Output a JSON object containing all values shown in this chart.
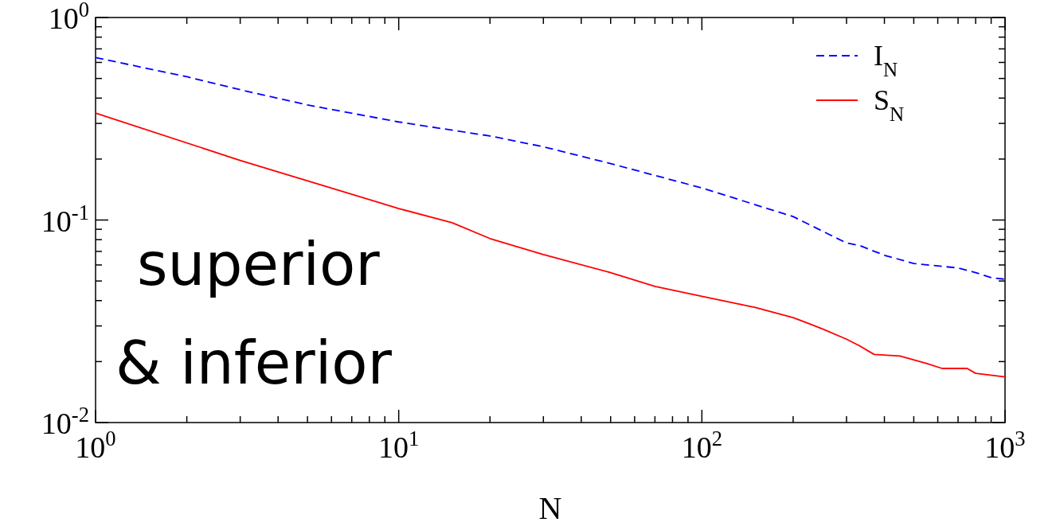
{
  "chart_data": {
    "type": "line",
    "xlabel": "N",
    "log": "xy",
    "xlim": [
      1,
      1000
    ],
    "ylim": [
      0.01,
      1
    ],
    "xticks": [
      {
        "value": 1,
        "label": "10$^{0}$"
      },
      {
        "value": 2,
        "label": null
      },
      {
        "value": 3,
        "label": null
      },
      {
        "value": 4,
        "label": null
      },
      {
        "value": 5,
        "label": null
      },
      {
        "value": 6,
        "label": null
      },
      {
        "value": 7,
        "label": null
      },
      {
        "value": 8,
        "label": null
      },
      {
        "value": 9,
        "label": null
      },
      {
        "value": 10,
        "label": "10$^{1}$"
      },
      {
        "value": 20,
        "label": null
      },
      {
        "value": 30,
        "label": null
      },
      {
        "value": 40,
        "label": null
      },
      {
        "value": 50,
        "label": null
      },
      {
        "value": 60,
        "label": null
      },
      {
        "value": 70,
        "label": null
      },
      {
        "value": 80,
        "label": null
      },
      {
        "value": 90,
        "label": null
      },
      {
        "value": 100,
        "label": "10$^{2}$"
      },
      {
        "value": 200,
        "label": null
      },
      {
        "value": 300,
        "label": null
      },
      {
        "value": 400,
        "label": null
      },
      {
        "value": 500,
        "label": null
      },
      {
        "value": 600,
        "label": null
      },
      {
        "value": 700,
        "label": null
      },
      {
        "value": 800,
        "label": null
      },
      {
        "value": 900,
        "label": null
      },
      {
        "value": 1000,
        "label": "10$^{3}$"
      }
    ],
    "yticks": [
      {
        "value": 0.01,
        "label": "10$^{-2}$"
      },
      {
        "value": 0.02,
        "label": null
      },
      {
        "value": 0.03,
        "label": null
      },
      {
        "value": 0.04,
        "label": null
      },
      {
        "value": 0.05,
        "label": null
      },
      {
        "value": 0.06,
        "label": null
      },
      {
        "value": 0.07,
        "label": null
      },
      {
        "value": 0.08,
        "label": null
      },
      {
        "value": 0.09,
        "label": null
      },
      {
        "value": 0.1,
        "label": "10$^{-1}$"
      },
      {
        "value": 0.2,
        "label": null
      },
      {
        "value": 0.3,
        "label": null
      },
      {
        "value": 0.4,
        "label": null
      },
      {
        "value": 0.5,
        "label": null
      },
      {
        "value": 0.6,
        "label": null
      },
      {
        "value": 0.7,
        "label": null
      },
      {
        "value": 0.8,
        "label": null
      },
      {
        "value": 0.9,
        "label": null
      },
      {
        "value": 1,
        "label": "10$^{0}$"
      }
    ],
    "grid": false,
    "legend": "top right",
    "marker": "none",
    "series": [
      {
        "name": "I$_{N}$",
        "color": "#0000ff",
        "line_style": "dashed",
        "x": [
          1,
          2,
          3,
          5,
          10,
          20,
          30,
          50,
          100,
          200,
          300,
          330,
          400,
          500,
          700,
          800,
          900,
          1000
        ],
        "values": [
          0.634,
          0.51,
          0.44,
          0.37,
          0.305,
          0.26,
          0.23,
          0.19,
          0.144,
          0.104,
          0.077,
          0.075,
          0.067,
          0.061,
          0.058,
          0.055,
          0.052,
          0.051
        ]
      },
      {
        "name": "S$_{N}$",
        "color": "#ff0000",
        "line_style": "solid",
        "x": [
          1,
          3,
          10,
          15,
          20,
          30,
          50,
          70,
          100,
          150,
          200,
          250,
          300,
          330,
          370,
          450,
          550,
          620,
          750,
          800,
          1000
        ],
        "values": [
          0.337,
          0.197,
          0.114,
          0.097,
          0.081,
          0.0676,
          0.055,
          0.047,
          0.042,
          0.037,
          0.033,
          0.029,
          0.0258,
          0.024,
          0.0217,
          0.0213,
          0.0196,
          0.0185,
          0.0185,
          0.0175,
          0.0168
        ]
      }
    ],
    "annotations": [
      "superior",
      "& inferior"
    ]
  }
}
